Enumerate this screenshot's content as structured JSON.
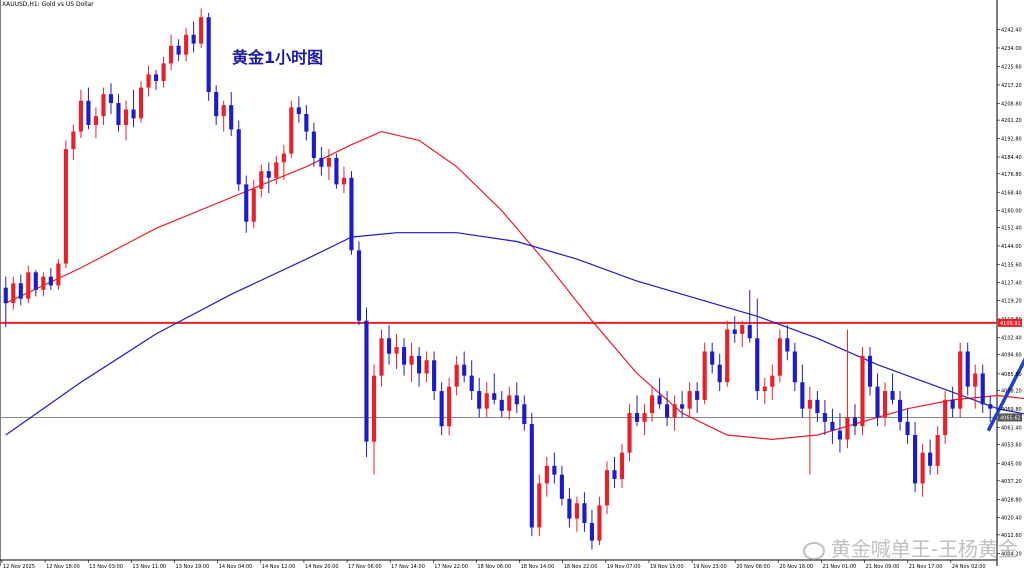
{
  "header": {
    "symbol": "XAUUSD,H1: Gold vs US Dollar"
  },
  "annotation": {
    "title": "黄金1小时图"
  },
  "watermark": {
    "text": "黄金喊单王-王杨黄金"
  },
  "colors": {
    "bull": "#e8202a",
    "bear": "#1c1ccc",
    "ma_fast": "#e8202a",
    "ma_slow": "#1c1ccc",
    "resistance": "#e8202a",
    "current": "#888888",
    "arrow": "#1c3fd4"
  },
  "chart_data": {
    "type": "candlestick",
    "ylim": [
      4003,
      4254
    ],
    "y_ticks": [
      "4242.40",
      "4234.00",
      "4225.60",
      "4217.20",
      "4208.80",
      "4201.20",
      "4192.80",
      "4184.40",
      "4176.80",
      "4168.40",
      "4160.00",
      "4152.40",
      "4144.00",
      "4135.60",
      "4127.40",
      "4119.20",
      "4110.80",
      "4102.40",
      "4094.60",
      "4085.80",
      "4078.20",
      "4069.80",
      "4061.40",
      "4053.60",
      "4045.00",
      "4037.20",
      "4028.80",
      "4020.40",
      "4012.60",
      "4004.20"
    ],
    "x_labels": [
      "12 Nov 2025",
      "12 Nov 18:00",
      "13 Nov 03:00",
      "13 Nov 11:00",
      "13 Nov 19:00",
      "14 Nov 04:00",
      "14 Nov 12:00",
      "14 Nov 20:00",
      "17 Nov 06:00",
      "17 Nov 14:00",
      "17 Nov 22:00",
      "18 Nov 06:00",
      "18 Nov 14:00",
      "18 Nov 22:00",
      "19 Nov 07:00",
      "19 Nov 15:00",
      "19 Nov 23:00",
      "20 Nov 08:00",
      "20 Nov 16:00",
      "21 Nov 01:00",
      "21 Nov 09:00",
      "21 Nov 17:00",
      "24 Nov 02:00"
    ],
    "resistance_level": {
      "value": 4109.0,
      "label": "4109.91"
    },
    "current_level": {
      "value": 4066.0,
      "label": "4065.62"
    },
    "candles": [
      [
        4125,
        4130,
        4107,
        4118
      ],
      [
        4118,
        4130,
        4115,
        4127
      ],
      [
        4127,
        4131,
        4117,
        4120
      ],
      [
        4120,
        4135,
        4118,
        4132
      ],
      [
        4132,
        4133,
        4121,
        4124
      ],
      [
        4124,
        4132,
        4121,
        4130
      ],
      [
        4130,
        4134,
        4124,
        4126
      ],
      [
        4126,
        4138,
        4124,
        4136
      ],
      [
        4136,
        4192,
        4134,
        4188
      ],
      [
        4188,
        4199,
        4183,
        4196
      ],
      [
        4196,
        4215,
        4193,
        4210
      ],
      [
        4210,
        4216,
        4197,
        4199
      ],
      [
        4199,
        4207,
        4193,
        4203
      ],
      [
        4203,
        4216,
        4199,
        4213
      ],
      [
        4213,
        4218,
        4204,
        4209
      ],
      [
        4209,
        4213,
        4196,
        4199
      ],
      [
        4199,
        4210,
        4192,
        4206
      ],
      [
        4206,
        4215,
        4198,
        4202
      ],
      [
        4202,
        4219,
        4200,
        4216
      ],
      [
        4216,
        4226,
        4212,
        4222
      ],
      [
        4222,
        4224,
        4215,
        4219
      ],
      [
        4219,
        4230,
        4216,
        4227
      ],
      [
        4227,
        4240,
        4224,
        4235
      ],
      [
        4235,
        4238,
        4228,
        4231
      ],
      [
        4231,
        4243,
        4228,
        4240
      ],
      [
        4240,
        4246,
        4232,
        4236
      ],
      [
        4236,
        4252,
        4234,
        4248
      ],
      [
        4248,
        4250,
        4210,
        4214
      ],
      [
        4214,
        4217,
        4199,
        4203
      ],
      [
        4203,
        4210,
        4196,
        4208
      ],
      [
        4208,
        4214,
        4194,
        4197
      ],
      [
        4197,
        4201,
        4169,
        4172
      ],
      [
        4172,
        4176,
        4150,
        4155
      ],
      [
        4155,
        4174,
        4152,
        4170
      ],
      [
        4170,
        4181,
        4166,
        4178
      ],
      [
        4178,
        4182,
        4168,
        4175
      ],
      [
        4175,
        4185,
        4172,
        4182
      ],
      [
        4182,
        4190,
        4174,
        4186
      ],
      [
        4186,
        4210,
        4184,
        4207
      ],
      [
        4207,
        4212,
        4200,
        4204
      ],
      [
        4204,
        4208,
        4192,
        4196
      ],
      [
        4196,
        4200,
        4180,
        4184
      ],
      [
        4184,
        4189,
        4176,
        4180
      ],
      [
        4180,
        4188,
        4174,
        4184
      ],
      [
        4184,
        4186,
        4170,
        4172
      ],
      [
        4172,
        4180,
        4168,
        4175
      ],
      [
        4175,
        4178,
        4140,
        4142
      ],
      [
        4142,
        4146,
        4108,
        4110
      ],
      [
        4110,
        4116,
        4048,
        4055
      ],
      [
        4055,
        4090,
        4040,
        4085
      ],
      [
        4085,
        4106,
        4080,
        4102
      ],
      [
        4102,
        4108,
        4090,
        4095
      ],
      [
        4095,
        4104,
        4088,
        4098
      ],
      [
        4098,
        4102,
        4085,
        4090
      ],
      [
        4090,
        4100,
        4082,
        4094
      ],
      [
        4094,
        4098,
        4080,
        4086
      ],
      [
        4086,
        4096,
        4082,
        4092
      ],
      [
        4092,
        4096,
        4074,
        4078
      ],
      [
        4078,
        4082,
        4058,
        4062
      ],
      [
        4062,
        4084,
        4058,
        4080
      ],
      [
        4080,
        4094,
        4076,
        4090
      ],
      [
        4090,
        4096,
        4082,
        4085
      ],
      [
        4085,
        4092,
        4074,
        4078
      ],
      [
        4078,
        4084,
        4066,
        4070
      ],
      [
        4070,
        4082,
        4066,
        4077
      ],
      [
        4077,
        4086,
        4072,
        4074
      ],
      [
        4074,
        4078,
        4066,
        4069
      ],
      [
        4069,
        4080,
        4065,
        4076
      ],
      [
        4076,
        4082,
        4068,
        4072
      ],
      [
        4072,
        4076,
        4060,
        4063
      ],
      [
        4063,
        4068,
        4012,
        4016
      ],
      [
        4016,
        4040,
        4012,
        4036
      ],
      [
        4036,
        4048,
        4030,
        4044
      ],
      [
        4044,
        4050,
        4036,
        4040
      ],
      [
        4040,
        4044,
        4026,
        4029
      ],
      [
        4029,
        4034,
        4016,
        4020
      ],
      [
        4020,
        4030,
        4014,
        4027
      ],
      [
        4027,
        4032,
        4014,
        4018
      ],
      [
        4018,
        4024,
        4006,
        4010
      ],
      [
        4010,
        4030,
        4008,
        4026
      ],
      [
        4026,
        4046,
        4022,
        4042
      ],
      [
        4042,
        4048,
        4034,
        4038
      ],
      [
        4038,
        4054,
        4034,
        4050
      ],
      [
        4050,
        4072,
        4046,
        4068
      ],
      [
        4068,
        4076,
        4062,
        4064
      ],
      [
        4064,
        4072,
        4058,
        4068
      ],
      [
        4068,
        4080,
        4064,
        4076
      ],
      [
        4076,
        4084,
        4070,
        4072
      ],
      [
        4072,
        4078,
        4062,
        4066
      ],
      [
        4066,
        4076,
        4060,
        4072
      ],
      [
        4072,
        4078,
        4066,
        4070
      ],
      [
        4070,
        4082,
        4066,
        4078
      ],
      [
        4078,
        4082,
        4068,
        4074
      ],
      [
        4074,
        4100,
        4072,
        4096
      ],
      [
        4096,
        4100,
        4086,
        4090
      ],
      [
        4090,
        4095,
        4078,
        4082
      ],
      [
        4082,
        4110,
        4080,
        4106
      ],
      [
        4106,
        4112,
        4100,
        4104
      ],
      [
        4104,
        4110,
        4098,
        4108
      ],
      [
        4108,
        4124,
        4100,
        4102
      ],
      [
        4102,
        4120,
        4074,
        4078
      ],
      [
        4078,
        4084,
        4072,
        4080
      ],
      [
        4080,
        4090,
        4074,
        4085
      ],
      [
        4085,
        4106,
        4082,
        4102
      ],
      [
        4102,
        4108,
        4092,
        4096
      ],
      [
        4096,
        4100,
        4078,
        4082
      ],
      [
        4082,
        4090,
        4066,
        4070
      ],
      [
        4070,
        4080,
        4040,
        4074
      ],
      [
        4074,
        4078,
        4064,
        4068
      ],
      [
        4068,
        4074,
        4058,
        4064
      ],
      [
        4064,
        4070,
        4054,
        4060
      ],
      [
        4060,
        4068,
        4050,
        4056
      ],
      [
        4056,
        4106,
        4052,
        4066
      ],
      [
        4066,
        4072,
        4058,
        4062
      ],
      [
        4062,
        4098,
        4058,
        4094
      ],
      [
        4094,
        4098,
        4076,
        4080
      ],
      [
        4080,
        4086,
        4062,
        4066
      ],
      [
        4066,
        4082,
        4062,
        4078
      ],
      [
        4078,
        4086,
        4072,
        4074
      ],
      [
        4074,
        4078,
        4060,
        4064
      ],
      [
        4064,
        4070,
        4054,
        4058
      ],
      [
        4058,
        4064,
        4032,
        4036
      ],
      [
        4036,
        4054,
        4030,
        4050
      ],
      [
        4050,
        4056,
        4040,
        4044
      ],
      [
        4044,
        4062,
        4040,
        4058
      ],
      [
        4058,
        4078,
        4054,
        4074
      ],
      [
        4074,
        4080,
        4066,
        4070
      ],
      [
        4070,
        4100,
        4066,
        4096
      ],
      [
        4096,
        4100,
        4076,
        4080
      ],
      [
        4080,
        4090,
        4070,
        4086
      ],
      [
        4086,
        4090,
        4068,
        4072
      ],
      [
        4072,
        4076,
        4064,
        4070
      ]
    ],
    "ma_fast": [
      [
        0,
        4118
      ],
      [
        10,
        4134
      ],
      [
        20,
        4152
      ],
      [
        30,
        4166
      ],
      [
        40,
        4180
      ],
      [
        46,
        4190
      ],
      [
        50,
        4196
      ],
      [
        55,
        4192
      ],
      [
        60,
        4180
      ],
      [
        66,
        4160
      ],
      [
        72,
        4136
      ],
      [
        78,
        4110
      ],
      [
        84,
        4086
      ],
      [
        90,
        4068
      ],
      [
        96,
        4058
      ],
      [
        102,
        4056
      ],
      [
        108,
        4058
      ],
      [
        114,
        4064
      ],
      [
        120,
        4070
      ],
      [
        126,
        4074
      ],
      [
        132,
        4076
      ],
      [
        137,
        4074
      ],
      [
        142,
        4068
      ]
    ],
    "ma_slow": [
      [
        0,
        4058
      ],
      [
        10,
        4082
      ],
      [
        20,
        4104
      ],
      [
        30,
        4122
      ],
      [
        40,
        4138
      ],
      [
        46,
        4148
      ],
      [
        52,
        4150
      ],
      [
        60,
        4150
      ],
      [
        68,
        4146
      ],
      [
        76,
        4138
      ],
      [
        84,
        4128
      ],
      [
        92,
        4120
      ],
      [
        100,
        4112
      ],
      [
        108,
        4102
      ],
      [
        116,
        4090
      ],
      [
        124,
        4080
      ],
      [
        132,
        4070
      ],
      [
        138,
        4066
      ],
      [
        142,
        4066
      ]
    ],
    "projection_arrow": [
      [
        4060
      ],
      [
        4104
      ],
      [
        4050
      ]
    ]
  }
}
